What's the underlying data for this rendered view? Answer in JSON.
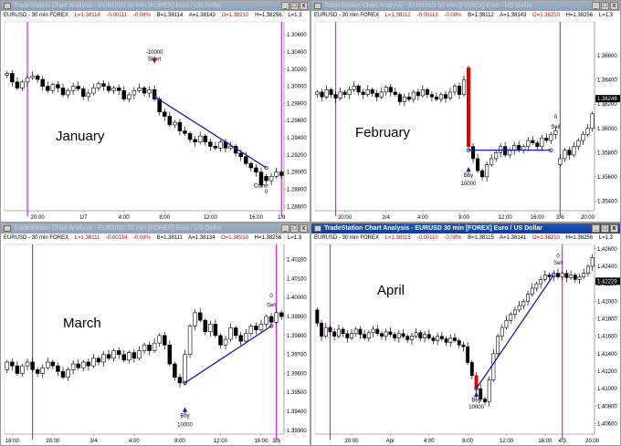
{
  "colors": {
    "candle_up": "#ffffff",
    "candle_down": "#000000",
    "trade_line": "#1a1aaa",
    "session_line": "#e020e0",
    "entry_bar": "#e00000",
    "arrow_short": "#e00000",
    "arrow_long": "#1a1aaa"
  },
  "panels": [
    {
      "title": "TradeStation Chart Analysis - EURUSD 30 min [FOREX] Euro / US Dollar",
      "active": false,
      "info": {
        "symbol": "EURUSD - 30 min  FOREX",
        "last": "L=1.38114",
        "change": "-0.00111",
        "pct": "-0.08%",
        "bid": "B=1.38114",
        "ask": "A=1.38143",
        "open": "O=1.38210",
        "high": "H=1.38256",
        "low": "L=1.3"
      },
      "label": "January",
      "last_tag": "",
      "chart_data": {
        "type": "candlestick",
        "ylim": [
          1.2855,
          1.3075
        ],
        "yticks": [
          "1.30600",
          "1.30400",
          "1.30200",
          "1.30000",
          "1.29800",
          "1.29600",
          "1.29400",
          "1.29200",
          "1.29000",
          "1.28800",
          "1.28600"
        ],
        "xticks": [
          {
            "label": "20:00",
            "i": 6
          },
          {
            "label": "1/7",
            "i": 15
          },
          {
            "label": "4:00",
            "i": 23
          },
          {
            "label": "8:00",
            "i": 31
          },
          {
            "label": "12:00",
            "i": 40
          },
          {
            "label": "16:00",
            "i": 49
          },
          {
            "label": "1/9",
            "i": 54
          }
        ],
        "sessions": [
          4,
          54
        ],
        "trade": {
          "from": [
            29,
            1.2988
          ],
          "to": [
            51,
            1.2905
          ]
        },
        "annotations": [
          {
            "text": "-10000",
            "i": 29,
            "y": 1.3038,
            "arrow": "down"
          },
          {
            "text": "Short",
            "i": 29,
            "y": 1.303
          },
          {
            "text": "Cover",
            "i": 50,
            "y": 1.2882
          },
          {
            "text": "0",
            "i": 51,
            "y": 1.2875
          }
        ],
        "opens": [
          1.3013,
          1.3015,
          1.3005,
          1.2998,
          1.3005,
          1.301,
          1.3012,
          1.3008,
          1.3,
          1.2995,
          1.3002,
          1.2998,
          1.299,
          1.2995,
          1.3,
          1.2997,
          1.2988,
          1.2992,
          1.2998,
          1.3003,
          1.3,
          1.2995,
          1.2998,
          1.2995,
          1.2985,
          1.299,
          1.2995,
          1.2998,
          1.2992,
          1.2996,
          1.2985,
          1.297,
          1.2965,
          1.2955,
          1.2958,
          1.2948,
          1.2945,
          1.2938,
          1.2935,
          1.2942,
          1.2935,
          1.293,
          1.2928,
          1.2935,
          1.2928,
          1.293,
          1.2922,
          1.2918,
          1.291,
          1.2905,
          1.29,
          1.2895,
          1.289,
          1.2895,
          1.29
        ],
        "closes": [
          1.3015,
          1.3005,
          1.2998,
          1.3005,
          1.301,
          1.3012,
          1.3008,
          1.3,
          1.2995,
          1.3002,
          1.2998,
          1.299,
          1.2995,
          1.3,
          1.2997,
          1.2988,
          1.2992,
          1.2998,
          1.3003,
          1.3,
          1.2995,
          1.2998,
          1.2995,
          1.2985,
          1.299,
          1.2995,
          1.2998,
          1.2992,
          1.2996,
          1.2985,
          1.297,
          1.2965,
          1.2955,
          1.2958,
          1.2948,
          1.2945,
          1.2938,
          1.2935,
          1.2942,
          1.2935,
          1.293,
          1.2928,
          1.2935,
          1.2928,
          1.293,
          1.2922,
          1.2918,
          1.291,
          1.2905,
          1.29,
          1.2885,
          1.289,
          1.2895,
          1.29,
          1.2896
        ]
      }
    },
    {
      "title": "TradeStation Chart Analysis - EURUSD 30 min [FOREX] Euro / US Dollar",
      "active": false,
      "info": {
        "symbol": "EURUSD - 30 min  FOREX",
        "last": "L=1.38112",
        "change": "-0.00113",
        "pct": "-0.08%",
        "bid": "B=1.38112",
        "ask": "A=1.38143",
        "open": "O=1.38210",
        "high": "H=1.38256",
        "low": "L=1.3"
      },
      "label": "February",
      "last_tag": "1.36246",
      "chart_data": {
        "type": "candlestick",
        "ylim": [
          1.3532,
          1.3688
        ],
        "yticks": [
          "1.36600",
          "1.36400",
          "1.36200",
          "1.36000",
          "1.35800",
          "1.35600",
          "1.35400"
        ],
        "xticks": [
          {
            "label": "20:00",
            "i": 6
          },
          {
            "label": "2/4",
            "i": 15
          },
          {
            "label": "4:00",
            "i": 23
          },
          {
            "label": "8:00",
            "i": 32
          },
          {
            "label": "12:00",
            "i": 41
          },
          {
            "label": "16:00",
            "i": 48
          },
          {
            "label": "2/6",
            "i": 53
          },
          {
            "label": "20:00",
            "i": 59
          }
        ],
        "sessions": [
          4,
          53
        ],
        "entry_bar": 33,
        "trade": {
          "from": [
            33,
            1.3582
          ],
          "to": [
            51,
            1.3582
          ]
        },
        "annotations": [
          {
            "text": "Buy",
            "i": 33,
            "y": 1.356,
            "arrow": "up"
          },
          {
            "text": "10000",
            "i": 33,
            "y": 1.3553
          },
          {
            "text": "0",
            "i": 52,
            "y": 1.3608
          },
          {
            "text": "Sell",
            "i": 52,
            "y": 1.36
          }
        ],
        "opens": [
          1.3628,
          1.363,
          1.3626,
          1.3632,
          1.3628,
          1.3625,
          1.363,
          1.3628,
          1.3632,
          1.3635,
          1.363,
          1.3628,
          1.3632,
          1.3629,
          1.3626,
          1.363,
          1.3634,
          1.363,
          1.3628,
          1.3622,
          1.3626,
          1.3624,
          1.363,
          1.3627,
          1.3632,
          1.3628,
          1.3626,
          1.3624,
          1.3628,
          1.3625,
          1.363,
          1.3635,
          1.3628,
          1.365,
          1.3585,
          1.3575,
          1.3565,
          1.356,
          1.357,
          1.3575,
          1.358,
          1.3585,
          1.3578,
          1.3582,
          1.3586,
          1.3582,
          1.3585,
          1.359,
          1.3588,
          1.3585,
          1.3592,
          1.359,
          1.3595,
          1.357,
          1.3575,
          1.3582,
          1.3578,
          1.3585,
          1.359,
          1.3595,
          1.36
        ],
        "closes": [
          1.363,
          1.3626,
          1.3632,
          1.3628,
          1.3625,
          1.363,
          1.3628,
          1.3632,
          1.3635,
          1.363,
          1.3628,
          1.3632,
          1.3629,
          1.3626,
          1.363,
          1.3634,
          1.363,
          1.3628,
          1.3622,
          1.3626,
          1.3624,
          1.363,
          1.3627,
          1.3632,
          1.3628,
          1.3626,
          1.3624,
          1.3628,
          1.3625,
          1.363,
          1.3635,
          1.3628,
          1.364,
          1.3585,
          1.3575,
          1.3565,
          1.356,
          1.357,
          1.3575,
          1.358,
          1.3585,
          1.3578,
          1.3582,
          1.3586,
          1.3582,
          1.3585,
          1.359,
          1.3588,
          1.3585,
          1.3592,
          1.359,
          1.3595,
          1.3598,
          1.3575,
          1.3582,
          1.3578,
          1.3585,
          1.359,
          1.3595,
          1.36,
          1.3612
        ]
      }
    },
    {
      "title": "TradeStation Chart Analysis - EURUSD 30 min [FOREX] Euro / US Dollar",
      "active": false,
      "info": {
        "symbol": "EURUSD - 30 min  FOREX",
        "last": "L=1.38111",
        "change": "-0.00114",
        "pct": "-0.08%",
        "bid": "B=1.38111",
        "ask": "A=1.38134",
        "open": "O=1.38210",
        "high": "H=1.38256",
        "low": "L=1.3"
      },
      "label": "March",
      "last_tag": "",
      "chart_data": {
        "type": "candlestick",
        "ylim": [
          1.3928,
          1.4028
        ],
        "yticks": [
          "1.40200",
          "1.40100",
          "1.40000",
          "1.39900",
          "1.39800",
          "1.39700",
          "1.39600",
          "1.39500",
          "1.39400",
          "1.39300"
        ],
        "xticks": [
          {
            "label": "16:00",
            "i": 1
          },
          {
            "label": "20:00",
            "i": 9
          },
          {
            "label": "3/4",
            "i": 17
          },
          {
            "label": "4:00",
            "i": 25
          },
          {
            "label": "8:00",
            "i": 34
          },
          {
            "label": "12:00",
            "i": 42
          },
          {
            "label": "16:00",
            "i": 50
          },
          {
            "label": "3/6",
            "i": 53
          }
        ],
        "sessions": [
          5,
          53
        ],
        "trade": {
          "from": [
            35,
            1.3955
          ],
          "to": [
            52,
            1.3985
          ]
        },
        "annotations": [
          {
            "text": "Buy",
            "i": 35,
            "y": 1.3937,
            "arrow": "up"
          },
          {
            "text": "10000",
            "i": 35,
            "y": 1.3932
          },
          {
            "text": "0",
            "i": 52,
            "y": 1.4
          },
          {
            "text": "Sell",
            "i": 52,
            "y": 1.3995
          }
        ],
        "opens": [
          1.3962,
          1.3966,
          1.3964,
          1.396,
          1.3964,
          1.3966,
          1.3962,
          1.396,
          1.3963,
          1.3966,
          1.3964,
          1.3961,
          1.3958,
          1.3962,
          1.3965,
          1.3963,
          1.3966,
          1.3964,
          1.3968,
          1.3966,
          1.397,
          1.3968,
          1.3972,
          1.397,
          1.3967,
          1.3971,
          1.3968,
          1.3972,
          1.3975,
          1.3972,
          1.3976,
          1.398,
          1.3975,
          1.3965,
          1.3958,
          1.3955,
          1.397,
          1.3985,
          1.3992,
          1.3988,
          1.3982,
          1.3986,
          1.398,
          1.3975,
          1.3978,
          1.3984,
          1.398,
          1.3977,
          1.3981,
          1.3985,
          1.3983,
          1.3986,
          1.399,
          1.3987,
          1.3992
        ],
        "closes": [
          1.3966,
          1.3964,
          1.396,
          1.3964,
          1.3966,
          1.3962,
          1.396,
          1.3963,
          1.3966,
          1.3964,
          1.3961,
          1.3958,
          1.3962,
          1.3965,
          1.3963,
          1.3966,
          1.3964,
          1.3968,
          1.3966,
          1.397,
          1.3968,
          1.3972,
          1.397,
          1.3967,
          1.3971,
          1.3968,
          1.3972,
          1.3975,
          1.3972,
          1.3976,
          1.398,
          1.3975,
          1.3965,
          1.3958,
          1.3955,
          1.397,
          1.3985,
          1.3992,
          1.3988,
          1.3982,
          1.3986,
          1.398,
          1.3975,
          1.3978,
          1.3984,
          1.398,
          1.3977,
          1.3981,
          1.3985,
          1.3983,
          1.3986,
          1.399,
          1.3987,
          1.3992,
          1.399
        ]
      }
    },
    {
      "title": "TradeStation Chart Analysis - EURUSD 30 min [FOREX] Euro / US Dollar",
      "active": true,
      "info": {
        "symbol": "EURUSD - 30 min  FOREX",
        "last": "L=1.38115",
        "change": "-0.00110",
        "pct": "-0.08%",
        "bid": "B=1.38115",
        "ask": "A=1.38141",
        "open": "O=1.38210",
        "high": "H=1.38256",
        "low": "L=1.3"
      },
      "label": "April",
      "last_tag": "1.42229",
      "chart_data": {
        "type": "candlestick",
        "ylim": [
          1.4048,
          1.4265
        ],
        "yticks": [
          "1.42600",
          "1.42400",
          "1.42200",
          "1.42000",
          "1.41800",
          "1.41600",
          "1.41400",
          "1.41200",
          "1.41000",
          "1.40800",
          "1.40600"
        ],
        "xticks": [
          {
            "label": "20:00",
            "i": 8
          },
          {
            "label": "Apr",
            "i": 17
          },
          {
            "label": "4:00",
            "i": 26
          },
          {
            "label": "8:00",
            "i": 35
          },
          {
            "label": "12:00",
            "i": 44
          },
          {
            "label": "16:00",
            "i": 53
          },
          {
            "label": "4/3",
            "i": 57
          },
          {
            "label": "20:00",
            "i": 64
          }
        ],
        "sessions": [
          3,
          57
        ],
        "entry_bar": 37,
        "trade": {
          "from": [
            37,
            1.41
          ],
          "to": [
            55,
            1.423
          ]
        },
        "annotations": [
          {
            "text": "Buy",
            "i": 37,
            "y": 1.4085,
            "arrow": "up"
          },
          {
            "text": "10000",
            "i": 37,
            "y": 1.4077
          },
          {
            "text": "0",
            "i": 56,
            "y": 1.425
          },
          {
            "text": "Sell",
            "i": 56,
            "y": 1.4242
          }
        ],
        "opens": [
          1.419,
          1.4175,
          1.416,
          1.417,
          1.4165,
          1.416,
          1.4168,
          1.4163,
          1.4158,
          1.4163,
          1.4168,
          1.4162,
          1.4158,
          1.4164,
          1.4168,
          1.4163,
          1.416,
          1.4165,
          1.4162,
          1.4158,
          1.4163,
          1.416,
          1.4156,
          1.416,
          1.4164,
          1.4158,
          1.4162,
          1.4158,
          1.4155,
          1.416,
          1.4157,
          1.4153,
          1.4158,
          1.4155,
          1.415,
          1.4148,
          1.413,
          1.4115,
          1.41,
          1.4088,
          1.4085,
          1.411,
          1.414,
          1.416,
          1.417,
          1.4178,
          1.4185,
          1.419,
          1.4195,
          1.42,
          1.4208,
          1.4215,
          1.422,
          1.4225,
          1.423,
          1.4228,
          1.4232,
          1.4228,
          1.4232,
          1.4227,
          1.423,
          1.4225,
          1.4228,
          1.4232,
          1.424
        ],
        "closes": [
          1.4175,
          1.416,
          1.417,
          1.4165,
          1.416,
          1.4168,
          1.4163,
          1.4158,
          1.4163,
          1.4168,
          1.4162,
          1.4158,
          1.4164,
          1.4168,
          1.4163,
          1.416,
          1.4165,
          1.4162,
          1.4158,
          1.4163,
          1.416,
          1.4156,
          1.416,
          1.4164,
          1.4158,
          1.4162,
          1.4158,
          1.4155,
          1.416,
          1.4157,
          1.4153,
          1.4158,
          1.4155,
          1.415,
          1.4148,
          1.413,
          1.4115,
          1.41,
          1.4088,
          1.4085,
          1.411,
          1.414,
          1.416,
          1.417,
          1.4178,
          1.4185,
          1.419,
          1.4195,
          1.42,
          1.4208,
          1.4215,
          1.422,
          1.4225,
          1.423,
          1.4228,
          1.4232,
          1.4228,
          1.4232,
          1.4227,
          1.423,
          1.4225,
          1.4228,
          1.4232,
          1.424,
          1.425
        ]
      }
    }
  ]
}
